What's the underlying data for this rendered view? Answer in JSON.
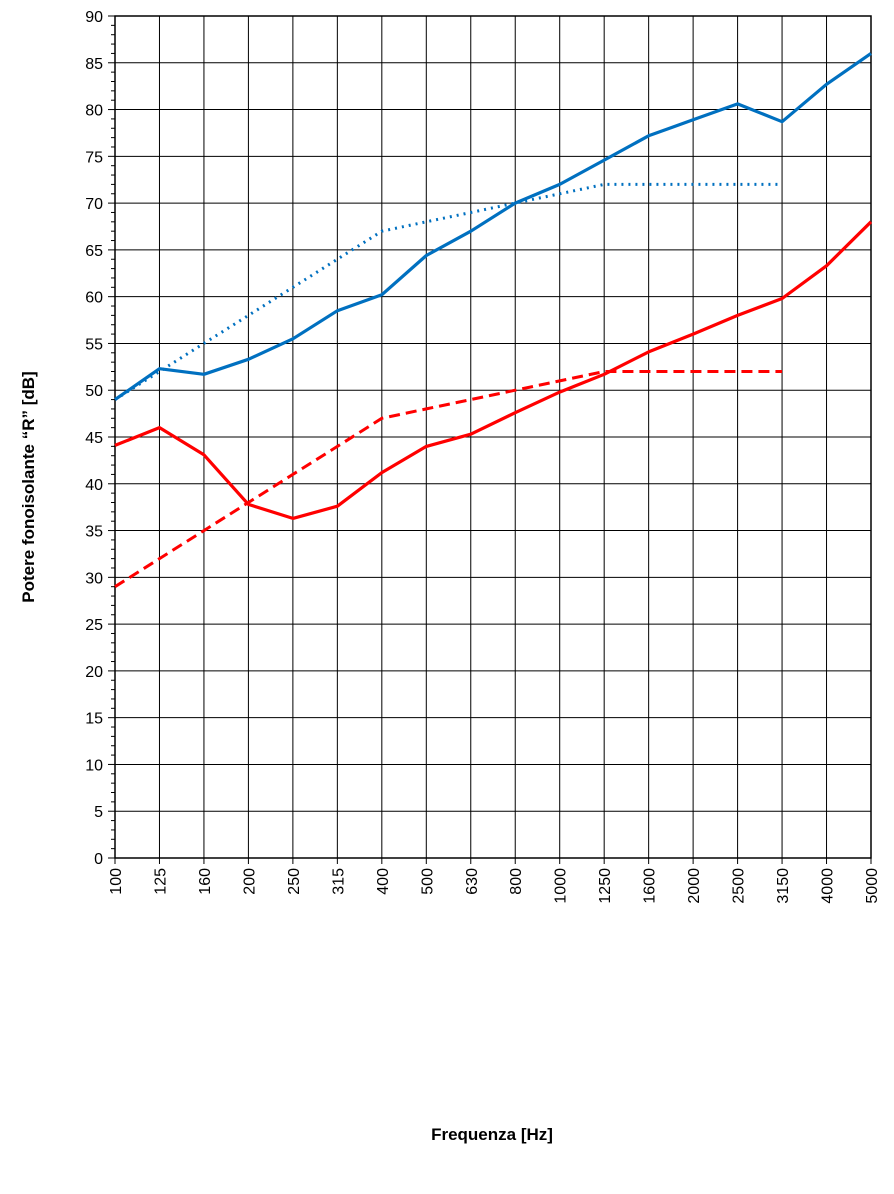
{
  "chart_data": {
    "type": "line",
    "title": "",
    "xlabel": "Frequenza [Hz]",
    "ylabel": "Potere fonoisolante “R” [dB]",
    "categories": [
      "100",
      "125",
      "160",
      "200",
      "250",
      "315",
      "400",
      "500",
      "630",
      "800",
      "1000",
      "1250",
      "1600",
      "2000",
      "2500",
      "3150",
      "4000",
      "5000"
    ],
    "ylim": [
      0,
      90
    ],
    "yticks": [
      "0",
      "5",
      "10",
      "15",
      "20",
      "25",
      "30",
      "35",
      "40",
      "45",
      "50",
      "55",
      "60",
      "65",
      "70",
      "75",
      "80",
      "85",
      "90"
    ],
    "grid": true,
    "legend": "none",
    "series": [
      {
        "style": "solid",
        "color": "#0070C0",
        "values": [
          49.0,
          52.3,
          51.7,
          53.3,
          55.5,
          58.5,
          60.2,
          64.4,
          67.0,
          70.0,
          72.0,
          74.6,
          77.2,
          78.9,
          80.6,
          78.7,
          82.7,
          86.0
        ]
      },
      {
        "style": "dotted",
        "color": "#0070C0",
        "values": [
          49,
          52,
          55,
          58,
          61,
          64,
          67,
          68,
          69,
          70,
          71,
          72,
          72,
          72,
          72,
          72,
          null,
          null
        ]
      },
      {
        "style": "solid",
        "color": "#FF0000",
        "values": [
          44.1,
          46.0,
          43.1,
          37.8,
          36.3,
          37.6,
          41.2,
          44.0,
          45.3,
          47.6,
          49.8,
          51.7,
          54.1,
          56.0,
          58.0,
          59.8,
          63.3,
          68.0
        ]
      },
      {
        "style": "dashed",
        "color": "#FF0000",
        "values": [
          29,
          32,
          35,
          38,
          41,
          44,
          47,
          48,
          49,
          50,
          51,
          52,
          52,
          52,
          52,
          52,
          null,
          null
        ]
      }
    ]
  }
}
